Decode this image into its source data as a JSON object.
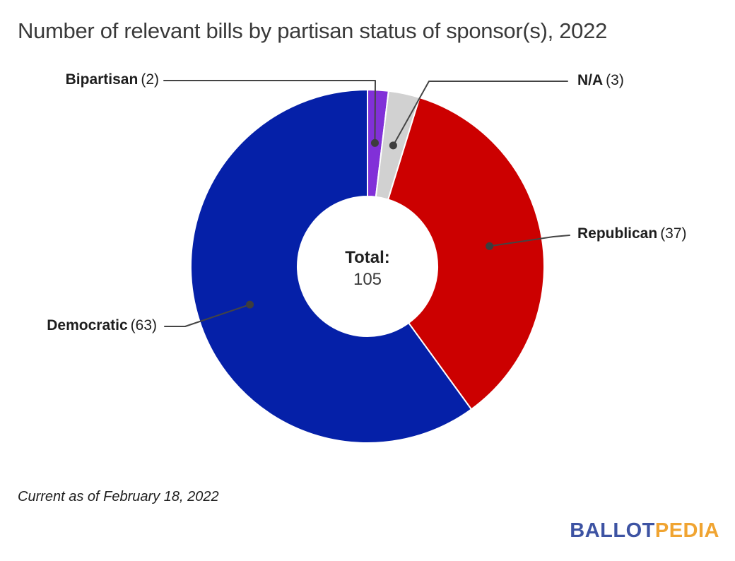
{
  "title": "Number of relevant bills by partisan status of sponsor(s), 2022",
  "footnote": "Current as of February 18, 2022",
  "center": {
    "label": "Total:",
    "value": "105"
  },
  "logo": {
    "text_blue": "BALLOT",
    "text_orange": "PEDIA",
    "color_blue": "#3D53A3",
    "color_orange": "#F0A431"
  },
  "chart_data": {
    "type": "pie",
    "subtype": "donut",
    "title": "Number of relevant bills by partisan status of sponsor(s), 2022",
    "total": 105,
    "center_label": "Total:",
    "center_value": 105,
    "start_angle_deg": 0,
    "direction": "clockwise",
    "legend": "none (labels with leader lines)",
    "categories": [
      "Bipartisan",
      "N/A",
      "Republican",
      "Democratic"
    ],
    "values": [
      2,
      3,
      37,
      63
    ],
    "colors": [
      "#8130D8",
      "#D1D1D1",
      "#CC0000",
      "#0520A8"
    ],
    "slices": [
      {
        "label": "Bipartisan",
        "count_display": "(2)",
        "value": 2,
        "color": "#8130D8"
      },
      {
        "label": "N/A",
        "count_display": "(3)",
        "value": 3,
        "color": "#D1D1D1"
      },
      {
        "label": "Republican",
        "count_display": "(37)",
        "value": 37,
        "color": "#CC0000"
      },
      {
        "label": "Democratic",
        "count_display": "(63)",
        "value": 63,
        "color": "#0520A8"
      }
    ],
    "leader_line_color": "#444444",
    "leader_dot_color": "#3d3d3d"
  }
}
